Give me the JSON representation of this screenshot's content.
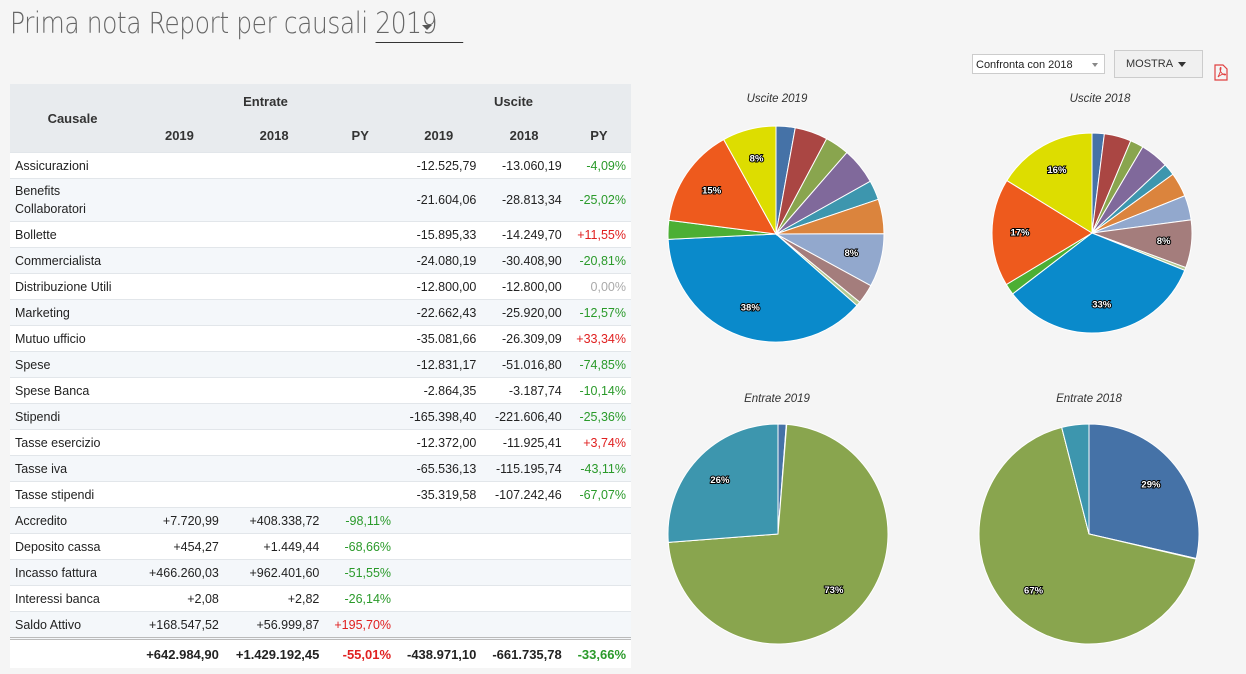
{
  "header": {
    "title": "Prima nota Report per causali",
    "year": "2019"
  },
  "controls": {
    "compare_label": "Confronta con 2018",
    "show_label": "MOSTRA",
    "pdf_icon": "pdf-icon"
  },
  "table": {
    "causale_header": "Causale",
    "entrate_header": "Entrate",
    "uscite_header": "Uscite",
    "sub_headers": [
      "2019",
      "2018",
      "PY",
      "2019",
      "2018",
      "PY"
    ],
    "rows": [
      {
        "causale": "Assicurazioni",
        "e19": "",
        "e18": "",
        "epy": "",
        "u19": "-12.525,79",
        "u18": "-13.060,19",
        "upy": "-4,09%"
      },
      {
        "causale": "Benefits Collaboratori",
        "e19": "",
        "e18": "",
        "epy": "",
        "u19": "-21.604,06",
        "u18": "-28.813,34",
        "upy": "-25,02%"
      },
      {
        "causale": "Bollette",
        "e19": "",
        "e18": "",
        "epy": "",
        "u19": "-15.895,33",
        "u18": "-14.249,70",
        "upy": "+11,55%"
      },
      {
        "causale": "Commercialista",
        "e19": "",
        "e18": "",
        "epy": "",
        "u19": "-24.080,19",
        "u18": "-30.408,90",
        "upy": "-20,81%"
      },
      {
        "causale": "Distribuzione Utili",
        "e19": "",
        "e18": "",
        "epy": "",
        "u19": "-12.800,00",
        "u18": "-12.800,00",
        "upy": "0,00%"
      },
      {
        "causale": "Marketing",
        "e19": "",
        "e18": "",
        "epy": "",
        "u19": "-22.662,43",
        "u18": "-25.920,00",
        "upy": "-12,57%"
      },
      {
        "causale": "Mutuo ufficio",
        "e19": "",
        "e18": "",
        "epy": "",
        "u19": "-35.081,66",
        "u18": "-26.309,09",
        "upy": "+33,34%"
      },
      {
        "causale": "Spese",
        "e19": "",
        "e18": "",
        "epy": "",
        "u19": "-12.831,17",
        "u18": "-51.016,80",
        "upy": "-74,85%"
      },
      {
        "causale": "Spese Banca",
        "e19": "",
        "e18": "",
        "epy": "",
        "u19": "-2.864,35",
        "u18": "-3.187,74",
        "upy": "-10,14%"
      },
      {
        "causale": "Stipendi",
        "e19": "",
        "e18": "",
        "epy": "",
        "u19": "-165.398,40",
        "u18": "-221.606,40",
        "upy": "-25,36%"
      },
      {
        "causale": "Tasse esercizio",
        "e19": "",
        "e18": "",
        "epy": "",
        "u19": "-12.372,00",
        "u18": "-11.925,41",
        "upy": "+3,74%"
      },
      {
        "causale": "Tasse iva",
        "e19": "",
        "e18": "",
        "epy": "",
        "u19": "-65.536,13",
        "u18": "-115.195,74",
        "upy": "-43,11%"
      },
      {
        "causale": "Tasse stipendi",
        "e19": "",
        "e18": "",
        "epy": "",
        "u19": "-35.319,58",
        "u18": "-107.242,46",
        "upy": "-67,07%"
      },
      {
        "causale": "Accredito",
        "e19": "+7.720,99",
        "e18": "+408.338,72",
        "epy": "-98,11%",
        "u19": "",
        "u18": "",
        "upy": ""
      },
      {
        "causale": "Deposito cassa",
        "e19": "+454,27",
        "e18": "+1.449,44",
        "epy": "-68,66%",
        "u19": "",
        "u18": "",
        "upy": ""
      },
      {
        "causale": "Incasso fattura",
        "e19": "+466.260,03",
        "e18": "+962.401,60",
        "epy": "-51,55%",
        "u19": "",
        "u18": "",
        "upy": ""
      },
      {
        "causale": "Interessi banca",
        "e19": "+2,08",
        "e18": "+2,82",
        "epy": "-26,14%",
        "u19": "",
        "u18": "",
        "upy": ""
      },
      {
        "causale": "Saldo Attivo",
        "e19": "+168.547,52",
        "e18": "+56.999,87",
        "epy": "+195,70%",
        "u19": "",
        "u18": "",
        "upy": ""
      }
    ],
    "totals": {
      "e19": "+642.984,90",
      "e18": "+1.429.192,45",
      "epy": "-55,01%",
      "u19": "-438.971,10",
      "u18": "-661.735,78",
      "upy": "-33,66%"
    }
  },
  "colors": {
    "pct_up": "#e02020",
    "pct_down": "#2a9a2a",
    "palette": [
      "#4572a7",
      "#aa4643",
      "#89a54e",
      "#80699b",
      "#3d96ae",
      "#db843d",
      "#92a8cd",
      "#a47d7c",
      "#b5ca92",
      "#0a8acb",
      "#4caf34",
      "#ee5a1d",
      "#dddd00"
    ]
  },
  "chart_data": [
    {
      "type": "pie",
      "title": "Uscite 2019",
      "labels": [
        "Assicurazioni",
        "Benefits Collaboratori",
        "Bollette",
        "Commercialista",
        "Distribuzione Utili",
        "Marketing",
        "Mutuo ufficio",
        "Spese",
        "Spese Banca",
        "Stipendi",
        "Tasse esercizio",
        "Tasse iva",
        "Tasse stipendi"
      ],
      "values": [
        12525.79,
        21604.06,
        15895.33,
        24080.19,
        12800.0,
        22662.43,
        35081.66,
        12831.17,
        2864.35,
        165398.4,
        12372.0,
        65536.13,
        35319.58
      ],
      "shown_labels": {
        "Mutuo ufficio": "8%",
        "Stipendi": "38%",
        "Tasse iva": "15%",
        "Tasse stipendi": "8%"
      }
    },
    {
      "type": "pie",
      "title": "Uscite 2018",
      "labels": [
        "Assicurazioni",
        "Benefits Collaboratori",
        "Bollette",
        "Commercialista",
        "Distribuzione Utili",
        "Marketing",
        "Mutuo ufficio",
        "Spese",
        "Spese Banca",
        "Stipendi",
        "Tasse esercizio",
        "Tasse iva",
        "Tasse stipendi"
      ],
      "values": [
        13060.19,
        28813.34,
        14249.7,
        30408.9,
        12800.0,
        25920.0,
        26309.09,
        51016.8,
        3187.74,
        221606.4,
        11925.41,
        115195.74,
        107242.46
      ],
      "shown_labels": {
        "Spese": "8%",
        "Stipendi": "33%",
        "Tasse iva": "17%",
        "Tasse stipendi": "16%"
      }
    },
    {
      "type": "pie",
      "title": "Entrate 2019",
      "labels": [
        "Accredito",
        "Deposito cassa",
        "Incasso fattura",
        "Interessi banca",
        "Saldo Attivo"
      ],
      "values": [
        7720.99,
        454.27,
        466260.03,
        2.08,
        168547.52
      ],
      "shown_labels": {
        "Incasso fattura": "73%",
        "Saldo Attivo": "26%"
      }
    },
    {
      "type": "pie",
      "title": "Entrate 2018",
      "labels": [
        "Accredito",
        "Deposito cassa",
        "Incasso fattura",
        "Interessi banca",
        "Saldo Attivo"
      ],
      "values": [
        408338.72,
        1449.44,
        962401.6,
        2.82,
        56999.87
      ],
      "shown_labels": {
        "Accredito": "29%",
        "Incasso fattura": "67%"
      }
    }
  ]
}
